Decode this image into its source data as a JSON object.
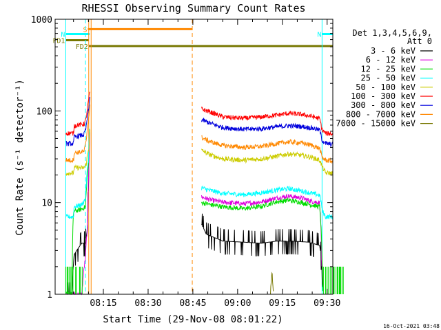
{
  "chart_data": {
    "type": "line",
    "title": "RHESSI Observing Summary Count Rates",
    "xlabel": "Start Time (29-Nov-08 08:01:22)",
    "ylabel": "Count Rate (s⁻¹ detector⁻¹)",
    "yscale": "log",
    "ylim": [
      1,
      1000
    ],
    "xlim": [
      "08:01:22",
      "09:39:00"
    ],
    "xticks": [
      "08:15",
      "08:30",
      "08:45",
      "09:00",
      "09:15",
      "09:30"
    ],
    "xtick_minutes": [
      0,
      15,
      30,
      45,
      60,
      75
    ],
    "yticks": [
      "1",
      "10",
      "100",
      "1000"
    ],
    "grid": false,
    "legend_title": [
      "Det 1,3,4,5,6,9,",
      "Att 0"
    ],
    "legend_position": "right",
    "series": [
      {
        "name": "3 - 6 keV",
        "color": "#000000",
        "seg1": [
          [
            -12.6,
            1
          ],
          [
            -10.5,
            1
          ],
          [
            -9.8,
            2.7
          ],
          [
            -7.2,
            3.6
          ],
          [
            -6.0,
            3.6
          ],
          [
            -5.3,
            5
          ],
          [
            -4.9,
            18
          ],
          [
            -4.6,
            60
          ]
        ],
        "seg2": [
          [
            32.9,
            5.8
          ],
          [
            34.5,
            4.5
          ],
          [
            40,
            3.8
          ],
          [
            47,
            3.7
          ],
          [
            53,
            3.6
          ],
          [
            58,
            3.8
          ],
          [
            63,
            3.8
          ],
          [
            69,
            3.7
          ],
          [
            72.5,
            3.4
          ],
          [
            73.3,
            2.0
          ],
          [
            73.5,
            1
          ]
        ]
      },
      {
        "name": "6 - 12 keV",
        "color": "#dd00dd",
        "seg1": [
          [
            -12.6,
            1
          ],
          [
            -7.2,
            1
          ],
          [
            -6.0,
            2.5
          ],
          [
            -5.2,
            6
          ],
          [
            -4.7,
            35
          ],
          [
            -4.5,
            70
          ]
        ],
        "seg2": [
          [
            32.9,
            11.5
          ],
          [
            36,
            10.7
          ],
          [
            40,
            10.1
          ],
          [
            47,
            9.7
          ],
          [
            53,
            10.2
          ],
          [
            58,
            11.2
          ],
          [
            62,
            11.8
          ],
          [
            66,
            11.3
          ],
          [
            70,
            10.3
          ],
          [
            72.5,
            10.0
          ],
          [
            73.3,
            1
          ]
        ]
      },
      {
        "name": "12 - 25 keV",
        "color": "#00dd00",
        "seg1": [
          [
            -12.6,
            1
          ],
          [
            -10.5,
            1
          ],
          [
            -10.0,
            8
          ],
          [
            -7.2,
            8.5
          ],
          [
            -6.0,
            9
          ],
          [
            -5.0,
            25
          ],
          [
            -4.6,
            60
          ]
        ],
        "seg2": [
          [
            32.9,
            10.0
          ],
          [
            36,
            9.5
          ],
          [
            40,
            9.0
          ],
          [
            47,
            8.6
          ],
          [
            53,
            9.1
          ],
          [
            58,
            10.2
          ],
          [
            62,
            10.6
          ],
          [
            66,
            10.1
          ],
          [
            70,
            9.4
          ],
          [
            72.5,
            9.0
          ],
          [
            73.3,
            2.5
          ],
          [
            73.6,
            1
          ]
        ]
      },
      {
        "name": "25 - 50 keV",
        "color": "#00ffff",
        "seg1": [
          [
            -12.6,
            7.0
          ],
          [
            -10.0,
            7.0
          ],
          [
            -9.8,
            9
          ],
          [
            -7.2,
            9.5
          ],
          [
            -6.0,
            11
          ],
          [
            -5.0,
            30
          ],
          [
            -4.6,
            70
          ]
        ],
        "seg2": [
          [
            32.9,
            14.5
          ],
          [
            36,
            13.5
          ],
          [
            40,
            12.6
          ],
          [
            47,
            12.2
          ],
          [
            53,
            12.8
          ],
          [
            58,
            13.7
          ],
          [
            62,
            14.2
          ],
          [
            66,
            13.5
          ],
          [
            70,
            12.6
          ],
          [
            72.5,
            12.0
          ],
          [
            73.5,
            8
          ],
          [
            74.5,
            7.0
          ],
          [
            80.5,
            7.0
          ]
        ]
      },
      {
        "name": "50 - 100 keV",
        "color": "#cccc00",
        "seg1": [
          [
            -12.6,
            21
          ],
          [
            -10.0,
            21
          ],
          [
            -9.8,
            24
          ],
          [
            -6.5,
            24
          ],
          [
            -5.8,
            26
          ],
          [
            -4.8,
            40
          ],
          [
            -4.5,
            70
          ]
        ],
        "seg2": [
          [
            32.9,
            37
          ],
          [
            36,
            33
          ],
          [
            40,
            30
          ],
          [
            47,
            29
          ],
          [
            53,
            30
          ],
          [
            58,
            32
          ],
          [
            62,
            34
          ],
          [
            66,
            33
          ],
          [
            70,
            31
          ],
          [
            72.5,
            29
          ],
          [
            73.5,
            24
          ],
          [
            74.5,
            21
          ],
          [
            80.5,
            21
          ]
        ]
      },
      {
        "name": "100 - 300 keV",
        "color": "#ff0000",
        "seg1": [
          [
            -12.6,
            57
          ],
          [
            -10.0,
            57
          ],
          [
            -9.8,
            69
          ],
          [
            -6.5,
            72
          ],
          [
            -5.8,
            80
          ],
          [
            -4.8,
            140
          ],
          [
            -4.5,
            170
          ]
        ],
        "seg2": [
          [
            32.9,
            105
          ],
          [
            36,
            97
          ],
          [
            40,
            86
          ],
          [
            47,
            83
          ],
          [
            53,
            86
          ],
          [
            58,
            90
          ],
          [
            62,
            94
          ],
          [
            66,
            92
          ],
          [
            70,
            87
          ],
          [
            72.5,
            82
          ],
          [
            73.3,
            62
          ],
          [
            74.5,
            57
          ],
          [
            80.5,
            55
          ]
        ]
      },
      {
        "name": "300 - 800 keV",
        "color": "#0000dd",
        "seg1": [
          [
            -12.6,
            44
          ],
          [
            -10.0,
            44
          ],
          [
            -9.8,
            52
          ],
          [
            -6.5,
            55
          ],
          [
            -5.8,
            65
          ],
          [
            -4.8,
            110
          ],
          [
            -4.5,
            150
          ]
        ],
        "seg2": [
          [
            32.9,
            80
          ],
          [
            36,
            73
          ],
          [
            40,
            66
          ],
          [
            47,
            63
          ],
          [
            53,
            64
          ],
          [
            58,
            67
          ],
          [
            62,
            69
          ],
          [
            66,
            68
          ],
          [
            70,
            65
          ],
          [
            72.5,
            62
          ],
          [
            73.3,
            48
          ],
          [
            74.5,
            44
          ],
          [
            80.5,
            42
          ]
        ]
      },
      {
        "name": "800 - 7000 keV",
        "color": "#ff8800",
        "seg1": [
          [
            -12.6,
            29
          ],
          [
            -10.0,
            29
          ],
          [
            -9.8,
            35
          ],
          [
            -6.5,
            36
          ],
          [
            -5.8,
            45
          ],
          [
            -4.8,
            90
          ],
          [
            -4.5,
            120
          ]
        ],
        "seg2": [
          [
            32.9,
            51
          ],
          [
            36,
            46
          ],
          [
            40,
            42
          ],
          [
            47,
            40
          ],
          [
            53,
            41
          ],
          [
            58,
            44
          ],
          [
            62,
            46
          ],
          [
            66,
            45
          ],
          [
            70,
            42
          ],
          [
            72.5,
            39
          ],
          [
            73.3,
            31
          ],
          [
            74.5,
            29
          ],
          [
            80.5,
            27
          ]
        ]
      },
      {
        "name": "7000 - 15000 keV",
        "color": "#777700",
        "seg1": [],
        "seg2": [
          [
            56,
            1
          ],
          [
            56.5,
            1.8
          ],
          [
            57,
            1
          ]
        ]
      }
    ],
    "flags": [
      {
        "name": "S",
        "color": "#ff8800",
        "line_y": 780,
        "start": -5.2,
        "end": 29.8,
        "text_y": 780
      },
      {
        "name": "N",
        "color": "#00ffff",
        "line_y": 690,
        "start": -12.6,
        "end": -4.6,
        "text_y": 690
      },
      {
        "name": "N",
        "color": "#00ffff",
        "line_y": 690,
        "start": 73.3,
        "end": 80.5,
        "text_y": 690
      },
      {
        "name": "FD1",
        "color": "#777700",
        "line_y": 590,
        "start": -12.6,
        "end": -4.9,
        "text_y": 590
      },
      {
        "name": "FD2",
        "color": "#777700",
        "line_y": 510,
        "start": -4.9,
        "end": 80.5,
        "text_y": 510
      }
    ],
    "vlines": [
      {
        "minute": -6.0,
        "color": "#00ffff",
        "style": "dashed"
      },
      {
        "minute": -4.9,
        "color": "#ff8800",
        "style": "solid"
      },
      {
        "minute": -4.1,
        "color": "#ff8800",
        "style": "solid"
      },
      {
        "minute": 29.8,
        "color": "#ff8800",
        "style": "dashed"
      },
      {
        "minute": 73.3,
        "color": "#00ffff",
        "style": "solid"
      },
      {
        "minute": 80.5,
        "color": "#00ffff",
        "style": "dashed"
      },
      {
        "minute": -12.6,
        "color": "#00ffff",
        "style": "solid"
      }
    ],
    "footer_text": "16-Oct-2021 03:48"
  }
}
